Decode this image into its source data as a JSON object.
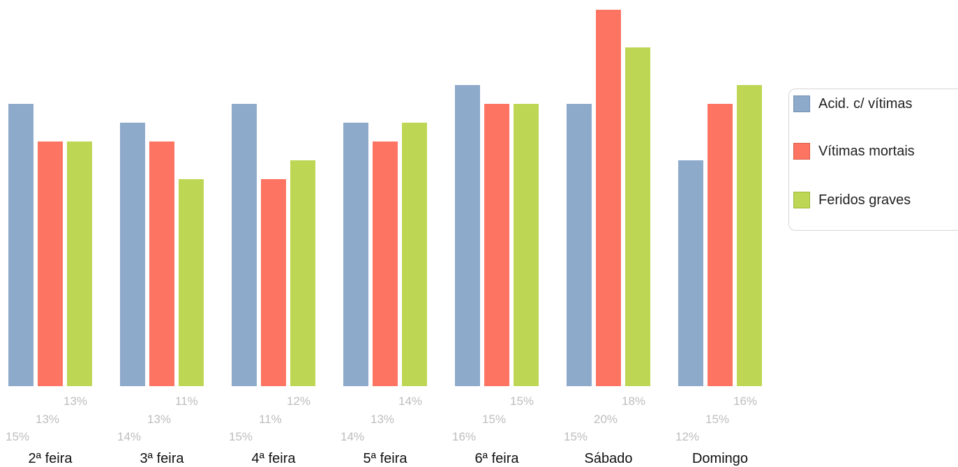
{
  "chart_data": {
    "type": "bar",
    "categories": [
      "2ª feira",
      "3ª feira",
      "4ª feira",
      "5ª feira",
      "6ª feira",
      "Sábado",
      "Domingo"
    ],
    "series": [
      {
        "name": "Acid. c/ vítimas",
        "color": "#8eaacb",
        "border": "#6f8fb5",
        "values": [
          15,
          14,
          15,
          14,
          16,
          15,
          12
        ],
        "labels": [
          "15%",
          "14%",
          "15%",
          "14%",
          "16%",
          "15%",
          "12%"
        ]
      },
      {
        "name": "Vítimas mortais",
        "color": "#fe7462",
        "border": "#d95a49",
        "values": [
          13,
          13,
          11,
          13,
          15,
          20,
          15
        ],
        "labels": [
          "13%",
          "13%",
          "11%",
          "13%",
          "15%",
          "20%",
          "15%"
        ]
      },
      {
        "name": "Feridos graves",
        "color": "#bdd755",
        "border": "#9db83a",
        "values": [
          13,
          11,
          12,
          14,
          15,
          18,
          16
        ],
        "labels": [
          "13%",
          "11%",
          "12%",
          "14%",
          "15%",
          "18%",
          "16%"
        ]
      }
    ],
    "ylim": [
      0,
      20
    ],
    "grid": false,
    "legend": "right"
  }
}
